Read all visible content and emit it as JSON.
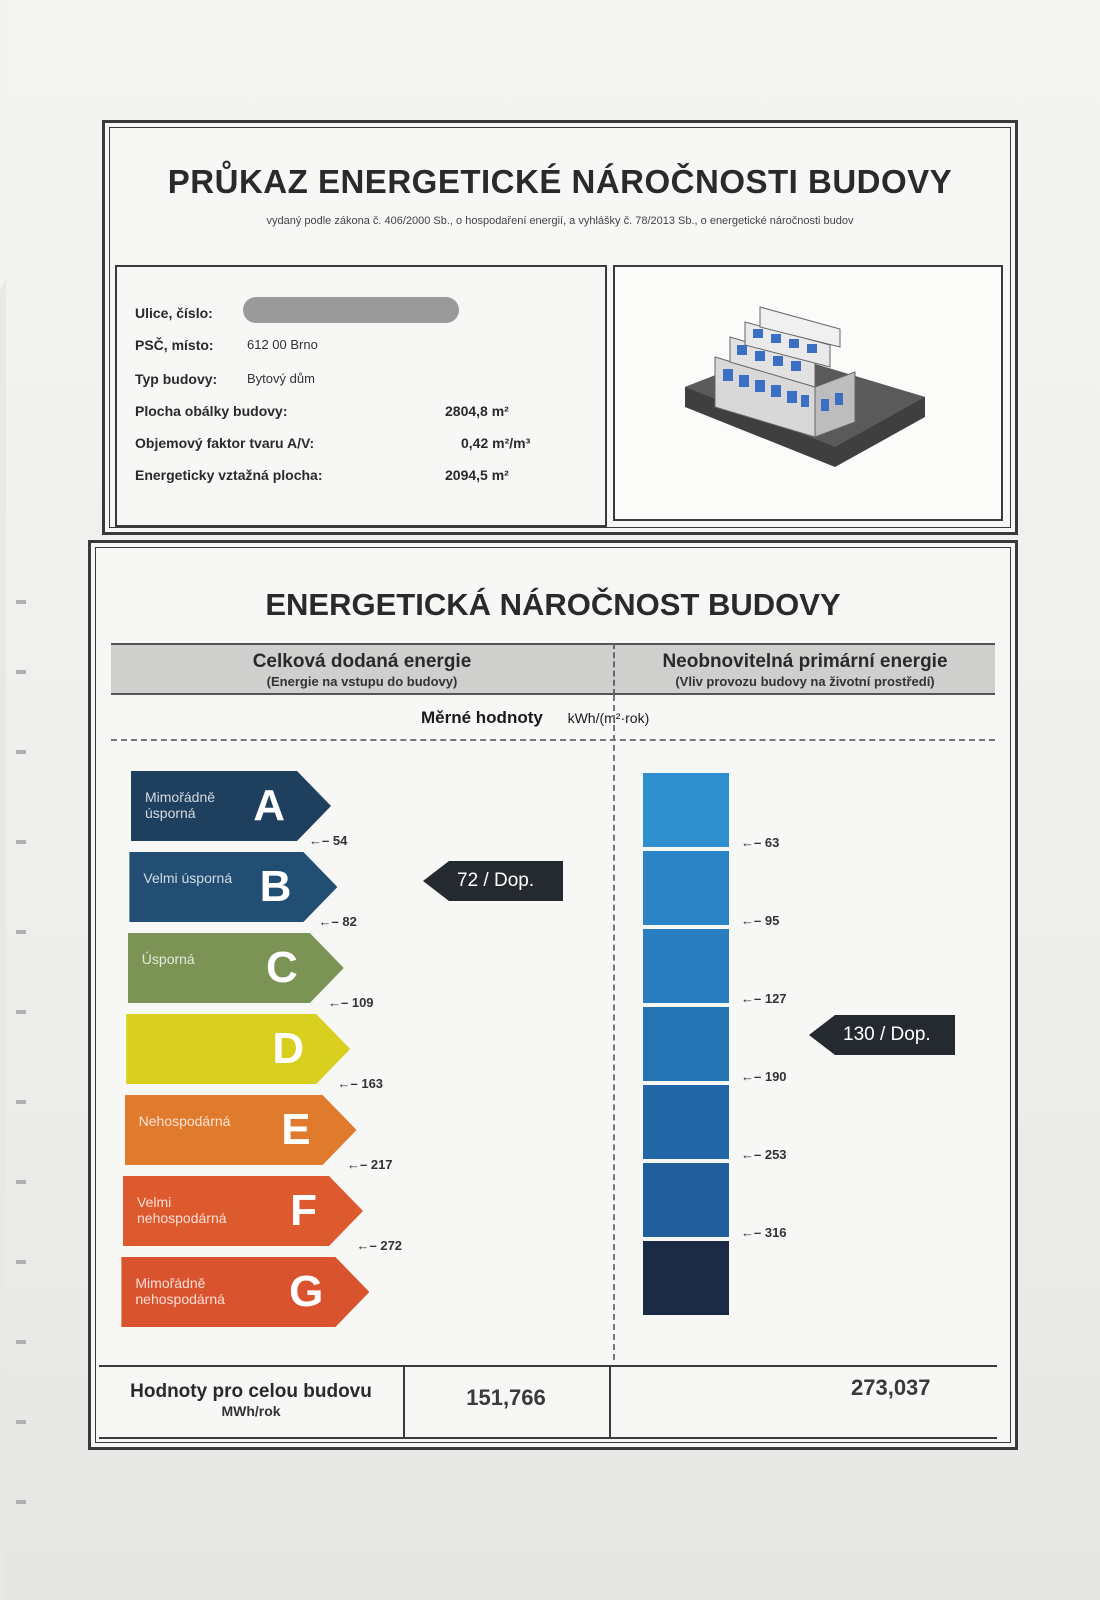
{
  "header": {
    "title": "PRŮKAZ ENERGETICKÉ NÁROČNOSTI BUDOVY",
    "subtitle": "vydaný podle zákona č. 406/2000 Sb., o hospodaření energií, a vyhlášky č. 78/2013 Sb., o energetické náročnosti budov"
  },
  "info": {
    "street_label": "Ulice, číslo:",
    "zip_label": "PSČ, místo:",
    "zip_value": "612 00  Brno",
    "type_label": "Typ budovy:",
    "type_value": "Bytový dům",
    "envelope_label": "Plocha obálky budovy:",
    "envelope_value": "2804,8 m²",
    "shape_label": "Objemový faktor tvaru A/V:",
    "shape_value": "0,42 m²/m³",
    "area_label": "Energeticky vztažná plocha:",
    "area_value": "2094,5 m²"
  },
  "section": {
    "title": "ENERGETICKÁ NÁROČNOST BUDOVY",
    "left_title": "Celková dodaná energie",
    "left_sub": "(Energie na vstupu do budovy)",
    "right_title": "Neobnovitelná primární energie",
    "right_sub": "(Vliv provozu budovy na životní prostředí)",
    "units_label": "Měrné hodnoty",
    "units": "kWh/(m²·rok)"
  },
  "classes": [
    {
      "letter": "A",
      "name": "Mimořádně úsporná",
      "limit": "54",
      "color": "#1f3f5e"
    },
    {
      "letter": "B",
      "name": "Velmi úsporná",
      "limit": "82",
      "color": "#214e72"
    },
    {
      "letter": "C",
      "name": "Úsporná",
      "limit": "109",
      "color": "#7b9455"
    },
    {
      "letter": "D",
      "name": "",
      "limit": "163",
      "color": "#d8cf1e"
    },
    {
      "letter": "E",
      "name": "Nehospodárná",
      "limit": "217",
      "color": "#e07a2c"
    },
    {
      "letter": "F",
      "name": "Velmi nehospodárná",
      "limit": "272",
      "color": "#dd5a2f"
    },
    {
      "letter": "G",
      "name": "Mimořádně nehospodárná",
      "limit": "",
      "color": "#d9542e"
    }
  ],
  "left_indicator": "72 / Dop.",
  "primary_scale": {
    "limits": [
      "63",
      "95",
      "127",
      "190",
      "253",
      "316"
    ],
    "colors": [
      "#2f8fcf",
      "#2b84c6",
      "#2a7ebf",
      "#2473b3",
      "#2266a5",
      "#215f9c",
      "#1b2b45"
    ],
    "indicator": "130 / Dop."
  },
  "totals": {
    "label": "Hodnoty pro celou budovu",
    "unit": "MWh/rok",
    "left_value": "151,766",
    "right_value": "273,037"
  }
}
